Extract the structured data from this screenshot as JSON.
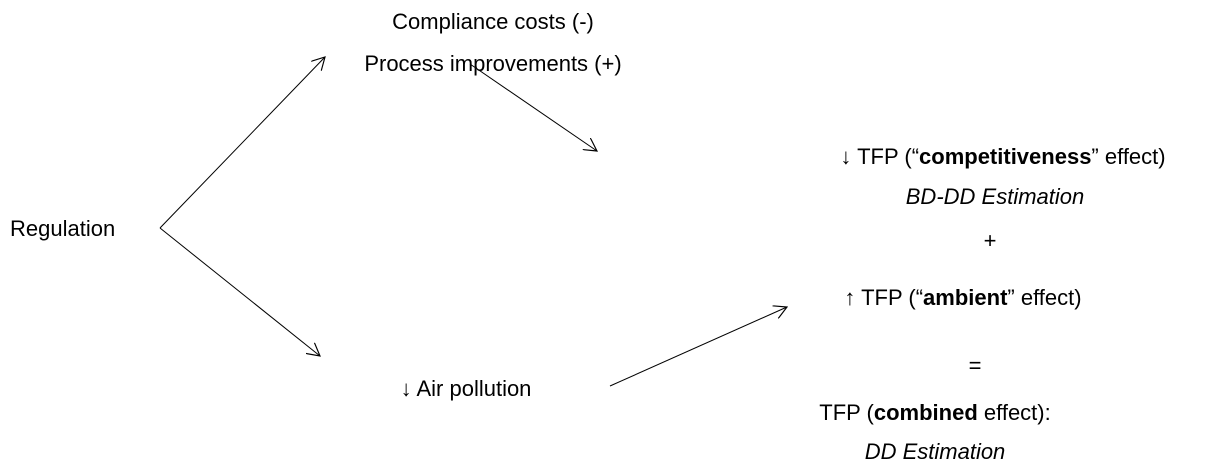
{
  "nodes": [
    {
      "label": "Regulation"
    },
    {
      "lines": [
        "Compliance costs (-)",
        "Process improvements (+)"
      ]
    },
    {
      "pre": "↓ TFP (“",
      "bold": "competitiveness",
      "post": "” effect)",
      "method": "BD-DD Estimation"
    },
    {
      "label": "+"
    },
    {
      "pre": "↑ TFP (“",
      "bold": "ambient",
      "post": "” effect)"
    },
    {
      "label": "="
    },
    {
      "pre": "TFP (",
      "bold": "combined",
      "post": " effect):",
      "method": "DD Estimation"
    },
    {
      "label": "↓ Air pollution"
    }
  ]
}
